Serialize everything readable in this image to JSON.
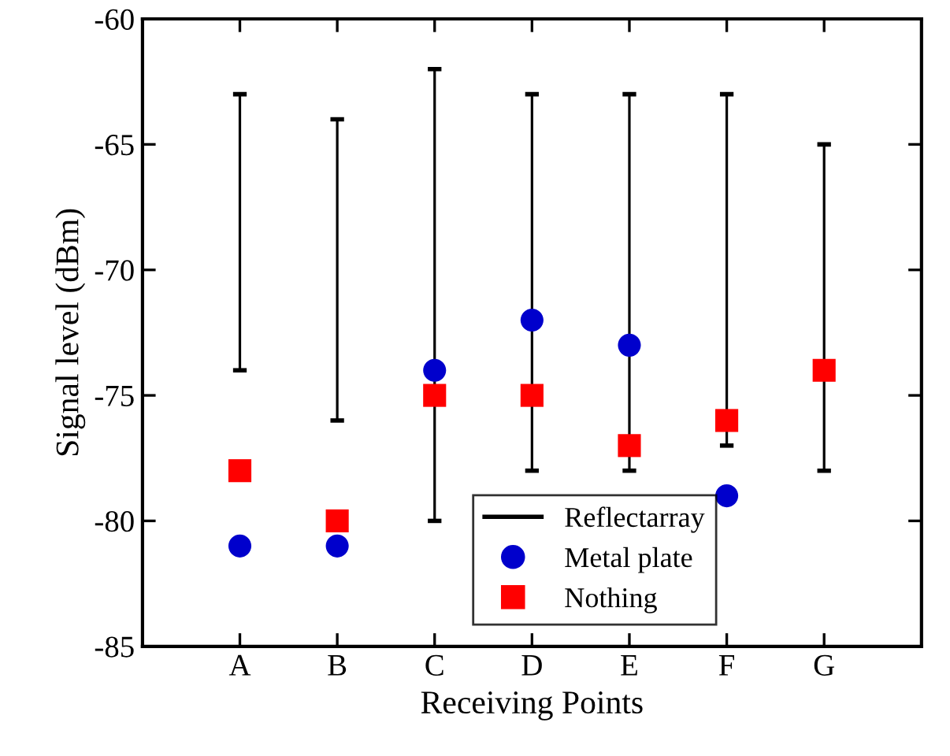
{
  "chart_data": {
    "type": "scatter",
    "xlabel": "Receiving Points",
    "ylabel": "Signal level (dBm)",
    "categories": [
      "A",
      "B",
      "C",
      "D",
      "E",
      "F",
      "G"
    ],
    "ylim": [
      -85,
      -60
    ],
    "yticks": [
      -85,
      -80,
      -75,
      -70,
      -65,
      -60
    ],
    "grid": false,
    "legend": "bottom",
    "series": [
      {
        "name": "Reflectarray",
        "type": "bar",
        "color": "#000000",
        "base": [
          -74,
          -76,
          -80,
          -78,
          -78,
          -77,
          -78
        ],
        "values": [
          11,
          12,
          18,
          15,
          15,
          14,
          13
        ]
      },
      {
        "name": "Metal plate",
        "marker": "circle",
        "color": "#0000cc",
        "values": [
          -81,
          -81,
          -74,
          -72,
          -73,
          -79,
          null
        ]
      },
      {
        "name": "Nothing",
        "marker": "square",
        "color": "#ff0000",
        "values": [
          -78,
          -80,
          -75,
          -75,
          -77,
          -76,
          -74
        ]
      }
    ]
  }
}
